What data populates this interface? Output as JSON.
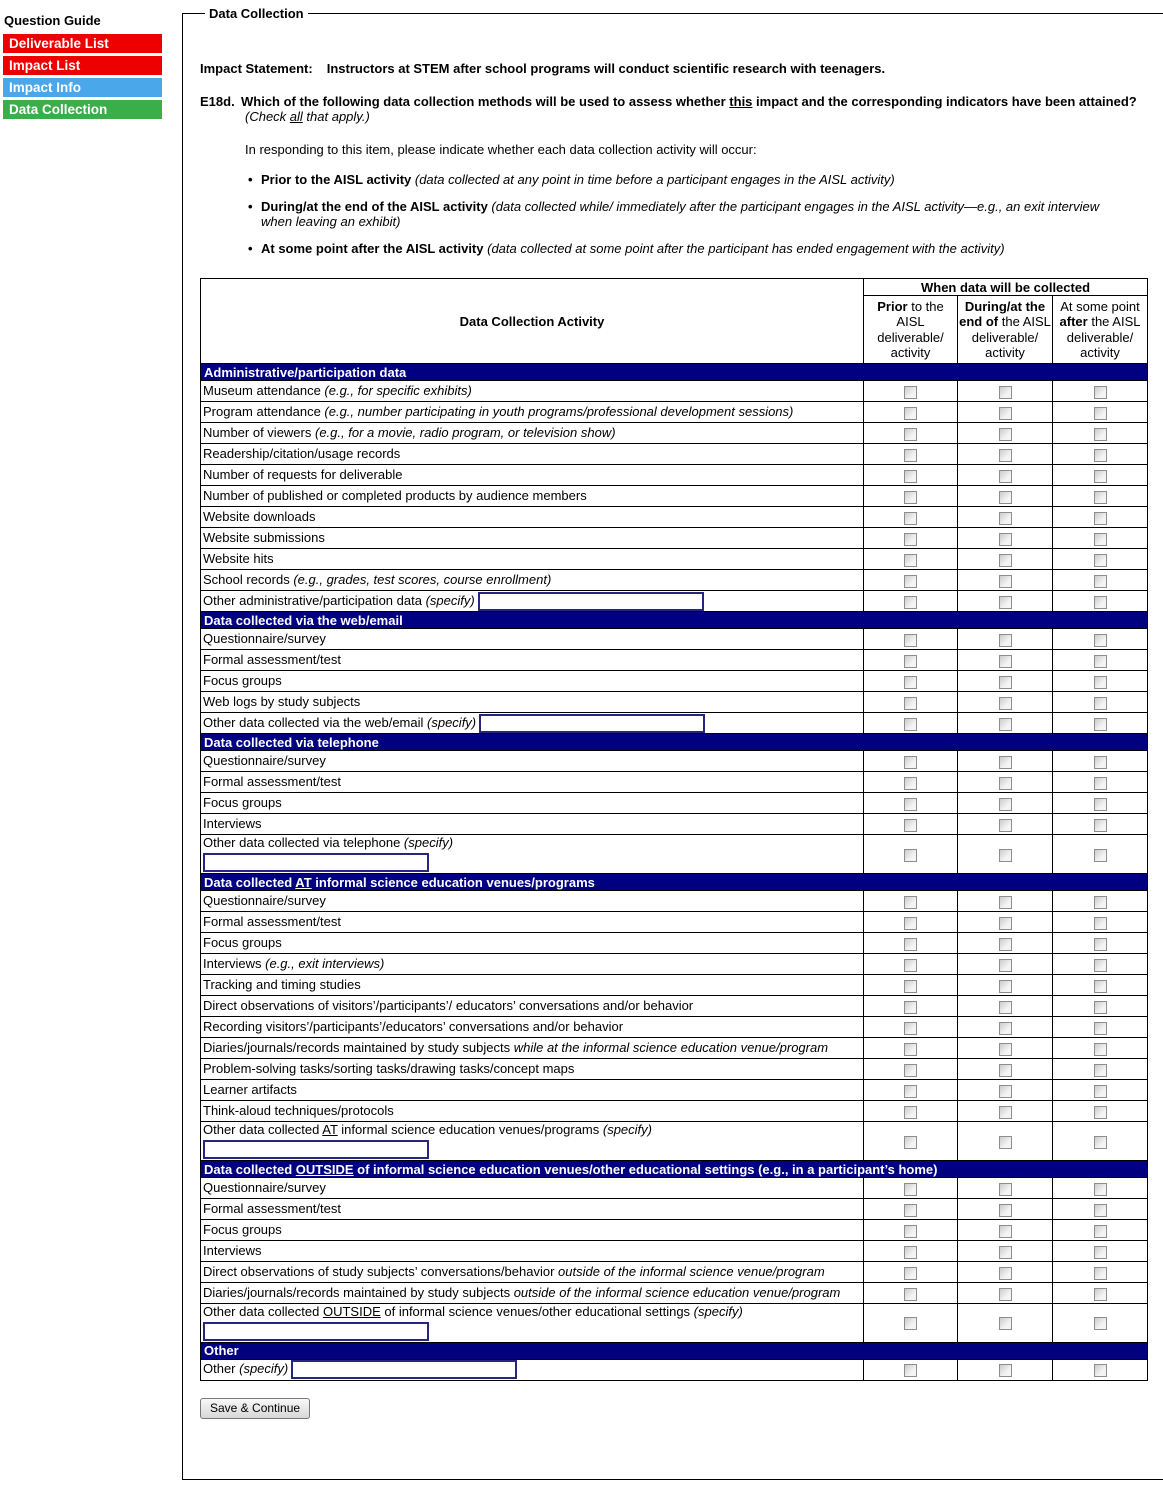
{
  "sidebar": {
    "title": "Question Guide",
    "items": [
      {
        "label": "Deliverable List",
        "color": "#ee0000"
      },
      {
        "label": "Impact List",
        "color": "#ee0000"
      },
      {
        "label": "Impact Info",
        "color": "#4aa7ea"
      },
      {
        "label": "Data Collection",
        "color": "#3aae49"
      }
    ]
  },
  "panel": {
    "legend": "Data Collection",
    "impact_label": "Impact Statement:",
    "impact_text": "Instructors at STEM after school programs will conduct scientific research with teenagers.",
    "question": {
      "number": "E18d.",
      "text_pre": "Which of the following data collection methods will be used to assess whether ",
      "text_underline": "this",
      "text_post": " impact and the corresponding indicators have been attained?",
      "note_pre": "(Check ",
      "note_underline": "all",
      "note_post": " that apply.)"
    },
    "intro": "In responding to this item, please indicate whether each data collection activity will occur:",
    "bullets": [
      {
        "bold": "Prior to the AISL activity",
        "italic": "(data collected at any point in time before a participant engages in the AISL activity)"
      },
      {
        "bold": "During/at the end of the AISL activity",
        "italic": "(data collected while/ immediately after the participant engages in the AISL activity—e.g., an exit interview when leaving an exhibit)"
      },
      {
        "bold": "At some point after the AISL activity",
        "italic": "(data collected at some point after the participant has ended engagement with the activity)"
      }
    ],
    "save_button": "Save & Continue"
  },
  "table": {
    "activity_header": "Data Collection Activity",
    "when_header": "When data will be collected",
    "columns": [
      {
        "pre": "",
        "bold": "Prior",
        "post": " to the AISL deliverable/ activity"
      },
      {
        "pre": "",
        "bold": "During/at the end of",
        "post": " the AISL deliverable/ activity"
      },
      {
        "pre": "At some point ",
        "bold": "after",
        "post": " the AISL deliverable/ activity"
      }
    ],
    "checkbox_names": [
      "prior",
      "during",
      "after"
    ],
    "sections": [
      {
        "header": [
          {
            "t": "Administrative/participation data"
          }
        ],
        "rows": [
          {
            "label": [
              {
                "t": "Museum attendance "
              },
              {
                "t": "(e.g., for specific exhibits)",
                "s": "i"
              }
            ]
          },
          {
            "label": [
              {
                "t": "Program attendance "
              },
              {
                "t": "(e.g., number participating in youth programs/professional development sessions)",
                "s": "i"
              }
            ]
          },
          {
            "label": [
              {
                "t": "Number of viewers "
              },
              {
                "t": "(e.g., for a movie, radio program, or television show)",
                "s": "i"
              }
            ]
          },
          {
            "label": [
              {
                "t": "Readership/citation/usage records"
              }
            ]
          },
          {
            "label": [
              {
                "t": "Number of requests for deliverable"
              }
            ]
          },
          {
            "label": [
              {
                "t": "Number of published or completed products by audience members"
              }
            ]
          },
          {
            "label": [
              {
                "t": "Website downloads"
              }
            ]
          },
          {
            "label": [
              {
                "t": "Website submissions"
              }
            ]
          },
          {
            "label": [
              {
                "t": "Website hits"
              }
            ]
          },
          {
            "label": [
              {
                "t": "School records "
              },
              {
                "t": "(e.g., grades, test scores, course enrollment)",
                "s": "i"
              }
            ]
          },
          {
            "label": [
              {
                "t": "Other administrative/participation data "
              },
              {
                "t": "(specify)",
                "s": "i"
              }
            ],
            "input": "inline",
            "input_value": ""
          }
        ]
      },
      {
        "header": [
          {
            "t": "Data collected via the web/email"
          }
        ],
        "rows": [
          {
            "label": [
              {
                "t": "Questionnaire/survey"
              }
            ]
          },
          {
            "label": [
              {
                "t": "Formal assessment/test"
              }
            ]
          },
          {
            "label": [
              {
                "t": "Focus groups"
              }
            ]
          },
          {
            "label": [
              {
                "t": "Web logs by study subjects"
              }
            ]
          },
          {
            "label": [
              {
                "t": "Other data collected via the web/email "
              },
              {
                "t": "(specify)",
                "s": "i"
              }
            ],
            "input": "inline",
            "input_value": ""
          }
        ]
      },
      {
        "header": [
          {
            "t": "Data collected via telephone"
          }
        ],
        "rows": [
          {
            "label": [
              {
                "t": "Questionnaire/survey"
              }
            ]
          },
          {
            "label": [
              {
                "t": "Formal assessment/test"
              }
            ]
          },
          {
            "label": [
              {
                "t": "Focus groups"
              }
            ]
          },
          {
            "label": [
              {
                "t": "Interviews"
              }
            ]
          },
          {
            "label": [
              {
                "t": "Other data collected via telephone "
              },
              {
                "t": "(specify)",
                "s": "i"
              }
            ],
            "input": "below",
            "input_value": ""
          }
        ]
      },
      {
        "header": [
          {
            "t": "Data collected "
          },
          {
            "t": "AT",
            "s": "u"
          },
          {
            "t": " informal science education venues/programs"
          }
        ],
        "rows": [
          {
            "label": [
              {
                "t": "Questionnaire/survey"
              }
            ]
          },
          {
            "label": [
              {
                "t": "Formal assessment/test"
              }
            ]
          },
          {
            "label": [
              {
                "t": "Focus groups"
              }
            ]
          },
          {
            "label": [
              {
                "t": "Interviews "
              },
              {
                "t": "(e.g., exit interviews)",
                "s": "i"
              }
            ]
          },
          {
            "label": [
              {
                "t": "Tracking and timing studies"
              }
            ]
          },
          {
            "label": [
              {
                "t": "Direct observations of visitors’/participants’/ educators’ conversations and/or behavior"
              }
            ]
          },
          {
            "label": [
              {
                "t": "Recording visitors’/participants’/educators’ conversations and/or behavior"
              }
            ]
          },
          {
            "label": [
              {
                "t": "Diaries/journals/records maintained by study subjects "
              },
              {
                "t": "while at the informal science education venue/program",
                "s": "i"
              }
            ]
          },
          {
            "label": [
              {
                "t": "Problem-solving tasks/sorting tasks/drawing tasks/concept maps"
              }
            ]
          },
          {
            "label": [
              {
                "t": "Learner artifacts"
              }
            ]
          },
          {
            "label": [
              {
                "t": "Think-aloud techniques/protocols"
              }
            ]
          },
          {
            "label": [
              {
                "t": "Other data collected "
              },
              {
                "t": "AT",
                "s": "u"
              },
              {
                "t": " informal science education venues/programs "
              },
              {
                "t": "(specify)",
                "s": "i"
              }
            ],
            "input": "below",
            "input_value": ""
          }
        ]
      },
      {
        "header": [
          {
            "t": "Data collected "
          },
          {
            "t": "OUTSIDE",
            "s": "u"
          },
          {
            "t": " of informal science education venues/other educational settings (e.g., in a participant’s home)"
          }
        ],
        "rows": [
          {
            "label": [
              {
                "t": "Questionnaire/survey"
              }
            ]
          },
          {
            "label": [
              {
                "t": "Formal assessment/test"
              }
            ]
          },
          {
            "label": [
              {
                "t": "Focus groups"
              }
            ]
          },
          {
            "label": [
              {
                "t": "Interviews"
              }
            ]
          },
          {
            "label": [
              {
                "t": "Direct observations of study subjects’ conversations/behavior "
              },
              {
                "t": "outside of the informal science venue/program",
                "s": "i"
              }
            ]
          },
          {
            "label": [
              {
                "t": "Diaries/journals/records maintained by study subjects "
              },
              {
                "t": "outside of the informal science education venue/program",
                "s": "i"
              }
            ]
          },
          {
            "label": [
              {
                "t": "Other data collected "
              },
              {
                "t": "OUTSIDE",
                "s": "u"
              },
              {
                "t": " of informal science venues/other educational settings "
              },
              {
                "t": "(specify)",
                "s": "i"
              }
            ],
            "input": "below",
            "input_value": ""
          }
        ]
      },
      {
        "header": [
          {
            "t": "Other"
          }
        ],
        "rows": [
          {
            "label": [
              {
                "t": "Other "
              },
              {
                "t": "(specify)",
                "s": "i"
              }
            ],
            "input": "inline",
            "input_value": ""
          }
        ]
      }
    ]
  }
}
